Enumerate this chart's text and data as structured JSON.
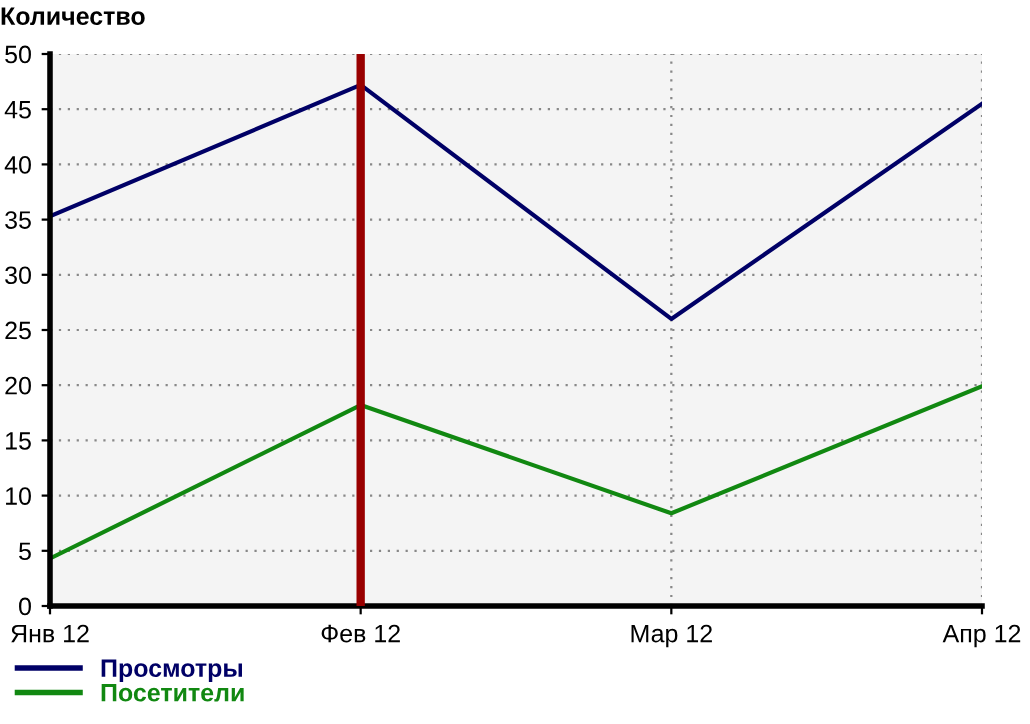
{
  "chart_data": {
    "type": "line",
    "ylabel": "Количество",
    "categories": [
      "Янв 12",
      "Фев 12",
      "Мар 12",
      "Апр 12"
    ],
    "series": [
      {
        "name": "Просмотры",
        "color": "#000066",
        "values": [
          35.3,
          47.2,
          26,
          45.5
        ]
      },
      {
        "name": "Посетители",
        "color": "#118811",
        "values": [
          4.3,
          18.2,
          8.4,
          19.9
        ]
      }
    ],
    "ylim": [
      0,
      50
    ],
    "yticks": [
      0,
      5,
      10,
      15,
      20,
      25,
      30,
      35,
      40,
      45,
      50
    ],
    "grid": true,
    "legend": "bottom left",
    "marker": "none",
    "line_style": "solid",
    "ref_lines": [
      {
        "axis": "x",
        "value": "Фев 12",
        "color": "#990000"
      }
    ]
  }
}
